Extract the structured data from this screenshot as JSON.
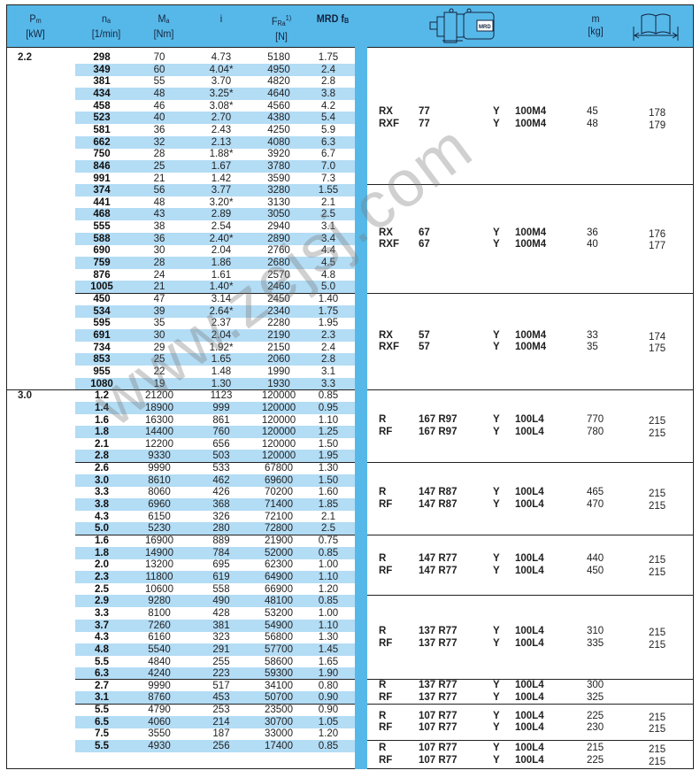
{
  "header": {
    "power": {
      "symbol": "P",
      "sub": "m",
      "unit": "[kW]"
    },
    "speed": {
      "symbol": "n",
      "sub": "a",
      "unit": "[1/min]"
    },
    "torque": {
      "symbol": "M",
      "sub": "a",
      "unit": "[Nm]"
    },
    "ratio": {
      "symbol": "i"
    },
    "force": {
      "symbol": "F",
      "sub": "Ra",
      "sup": "1)",
      "unit": "[N]"
    },
    "service_factor": {
      "label": "MRD f",
      "sub": "B"
    },
    "gearmotor_icon": "gearmotor-drawing-icon",
    "mass": {
      "symbol": "m",
      "unit": "[kg]"
    },
    "page_icon": "book-page-reference-icon"
  },
  "colors": {
    "header_bg": "#56b8e8",
    "stripe": "#b3dcf5",
    "accent_bar": "#56b8e8"
  },
  "watermark": "www.zejsj.com",
  "groups": [
    {
      "power": "2.2",
      "rows": [
        [
          "298",
          "70",
          "4.73",
          "5180",
          "1.75"
        ],
        [
          "349",
          "60",
          "4.04*",
          "4950",
          "2.4"
        ],
        [
          "381",
          "55",
          "3.70",
          "4820",
          "2.8"
        ],
        [
          "434",
          "48",
          "3.25*",
          "4640",
          "3.8"
        ],
        [
          "458",
          "46",
          "3.08*",
          "4560",
          "4.2"
        ],
        [
          "523",
          "40",
          "2.70",
          "4380",
          "5.4"
        ],
        [
          "581",
          "36",
          "2.43",
          "4250",
          "5.9"
        ],
        [
          "662",
          "32",
          "2.13",
          "4080",
          "6.3"
        ],
        [
          "750",
          "28",
          "1.88*",
          "3920",
          "6.7"
        ],
        [
          "846",
          "25",
          "1.67",
          "3780",
          "7.0"
        ],
        [
          "991",
          "21",
          "1.42",
          "3590",
          "7.3"
        ]
      ],
      "types": [
        {
          "type": "RX",
          "size": "77",
          "y": "Y",
          "motor": "100M4",
          "m": "45",
          "page": "178"
        },
        {
          "type": "RXF",
          "size": "77",
          "y": "Y",
          "motor": "100M4",
          "m": "48",
          "page": "179"
        }
      ]
    },
    {
      "rows": [
        [
          "374",
          "56",
          "3.77",
          "3280",
          "1.55"
        ],
        [
          "441",
          "48",
          "3.20*",
          "3130",
          "2.1"
        ],
        [
          "468",
          "43",
          "2.89",
          "3050",
          "2.5"
        ],
        [
          "555",
          "38",
          "2.54",
          "2940",
          "3.1"
        ],
        [
          "588",
          "36",
          "2.40*",
          "2890",
          "3.4"
        ],
        [
          "690",
          "30",
          "2.04",
          "2760",
          "4.4"
        ],
        [
          "759",
          "28",
          "1.86",
          "2680",
          "4.5"
        ],
        [
          "876",
          "24",
          "1.61",
          "2570",
          "4.8"
        ],
        [
          "1005",
          "21",
          "1.40*",
          "2460",
          "5.0"
        ]
      ],
      "types": [
        {
          "type": "RX",
          "size": "67",
          "y": "Y",
          "motor": "100M4",
          "m": "36",
          "page": "176"
        },
        {
          "type": "RXF",
          "size": "67",
          "y": "Y",
          "motor": "100M4",
          "m": "40",
          "page": "177"
        }
      ]
    },
    {
      "rows": [
        [
          "450",
          "47",
          "3.14",
          "2450",
          "1.40"
        ],
        [
          "534",
          "39",
          "2.64*",
          "2340",
          "1.75"
        ],
        [
          "595",
          "35",
          "2.37",
          "2280",
          "1.95"
        ],
        [
          "691",
          "30",
          "2.04",
          "2190",
          "2.3"
        ],
        [
          "734",
          "29",
          "1.92*",
          "2150",
          "2.4"
        ],
        [
          "853",
          "25",
          "1.65",
          "2060",
          "2.8"
        ],
        [
          "955",
          "22",
          "1.48",
          "1990",
          "3.1"
        ],
        [
          "1080",
          "19",
          "1.30",
          "1930",
          "3.3"
        ]
      ],
      "types": [
        {
          "type": "RX",
          "size": "57",
          "y": "Y",
          "motor": "100M4",
          "m": "33",
          "page": "174"
        },
        {
          "type": "RXF",
          "size": "57",
          "y": "Y",
          "motor": "100M4",
          "m": "35",
          "page": "175"
        }
      ]
    },
    {
      "power": "3.0",
      "rows": [
        [
          "1.2",
          "21200",
          "1123",
          "120000",
          "0.85"
        ],
        [
          "1.4",
          "18900",
          "999",
          "120000",
          "0.95"
        ],
        [
          "1.6",
          "16300",
          "861",
          "120000",
          "1.10"
        ],
        [
          "1.8",
          "14400",
          "760",
          "120000",
          "1.25"
        ],
        [
          "2.1",
          "12200",
          "656",
          "120000",
          "1.50"
        ],
        [
          "2.8",
          "9330",
          "503",
          "120000",
          "1.95"
        ]
      ],
      "types": [
        {
          "type": "R",
          "size": "167 R97",
          "y": "Y",
          "motor": "100L4",
          "m": "770",
          "page": "215"
        },
        {
          "type": "RF",
          "size": "167 R97",
          "y": "Y",
          "motor": "100L4",
          "m": "780",
          "page": "215"
        }
      ]
    },
    {
      "rows": [
        [
          "2.6",
          "9990",
          "533",
          "67800",
          "1.30"
        ],
        [
          "3.0",
          "8610",
          "462",
          "69600",
          "1.50"
        ],
        [
          "3.3",
          "8060",
          "426",
          "70200",
          "1.60"
        ],
        [
          "3.8",
          "6960",
          "368",
          "71400",
          "1.85"
        ],
        [
          "4.3",
          "6150",
          "326",
          "72100",
          "2.1"
        ],
        [
          "5.0",
          "5230",
          "280",
          "72800",
          "2.5"
        ]
      ],
      "types": [
        {
          "type": "R",
          "size": "147 R87",
          "y": "Y",
          "motor": "100L4",
          "m": "465",
          "page": "215"
        },
        {
          "type": "RF",
          "size": "147 R87",
          "y": "Y",
          "motor": "100L4",
          "m": "470",
          "page": "215"
        }
      ]
    },
    {
      "rows": [
        [
          "1.6",
          "16900",
          "889",
          "21900",
          "0.75"
        ],
        [
          "1.8",
          "14900",
          "784",
          "52000",
          "0.85"
        ],
        [
          "2.0",
          "13200",
          "695",
          "62300",
          "1.00"
        ],
        [
          "2.3",
          "11800",
          "619",
          "64900",
          "1.10"
        ],
        [
          "2.5",
          "10600",
          "558",
          "66900",
          "1.20"
        ]
      ],
      "types": [
        {
          "type": "R",
          "size": "147 R77",
          "y": "Y",
          "motor": "100L4",
          "m": "440",
          "page": "215"
        },
        {
          "type": "RF",
          "size": "147 R77",
          "y": "Y",
          "motor": "100L4",
          "m": "450",
          "page": "215"
        }
      ]
    },
    {
      "rows": [
        [
          "2.9",
          "9280",
          "490",
          "48100",
          "0.85"
        ],
        [
          "3.3",
          "8100",
          "428",
          "53200",
          "1.00"
        ],
        [
          "3.7",
          "7260",
          "381",
          "54900",
          "1.10"
        ],
        [
          "4.3",
          "6160",
          "323",
          "56800",
          "1.30"
        ],
        [
          "4.8",
          "5540",
          "291",
          "57700",
          "1.45"
        ],
        [
          "5.5",
          "4840",
          "255",
          "58600",
          "1.65"
        ],
        [
          "6.3",
          "4240",
          "223",
          "59300",
          "1.90"
        ]
      ],
      "types": [
        {
          "type": "R",
          "size": "137 R77",
          "y": "Y",
          "motor": "100L4",
          "m": "310",
          "page": "215"
        },
        {
          "type": "RF",
          "size": "137 R77",
          "y": "Y",
          "motor": "100L4",
          "m": "335",
          "page": "215"
        }
      ]
    },
    {
      "rows": [
        [
          "2.7",
          "9990",
          "517",
          "34100",
          "0.80"
        ],
        [
          "3.1",
          "8760",
          "453",
          "50700",
          "0.90"
        ]
      ],
      "types": [
        {
          "type": "R",
          "size": "137 R77",
          "y": "Y",
          "motor": "100L4",
          "m": "300",
          "page": ""
        },
        {
          "type": "RF",
          "size": "137 R77",
          "y": "Y",
          "motor": "100L4",
          "m": "325",
          "page": ""
        }
      ]
    },
    {
      "rows": [
        [
          "5.5",
          "4790",
          "253",
          "23500",
          "0.90"
        ],
        [
          "6.5",
          "4060",
          "214",
          "30700",
          "1.05"
        ],
        [
          "7.5",
          "3550",
          "187",
          "33000",
          "1.20"
        ]
      ],
      "types": [
        {
          "type": "R",
          "size": "107 R77",
          "y": "Y",
          "motor": "100L4",
          "m": "225",
          "page": "215"
        },
        {
          "type": "RF",
          "size": "107 R77",
          "y": "Y",
          "motor": "100L4",
          "m": "230",
          "page": "215"
        }
      ]
    },
    {
      "rows": [
        [
          "5.5",
          "4930",
          "256",
          "17400",
          "0.85"
        ]
      ],
      "types": [
        {
          "type": "R",
          "size": "107 R77",
          "y": "Y",
          "motor": "100L4",
          "m": "215",
          "page": "215"
        },
        {
          "type": "RF",
          "size": "107 R77",
          "y": "Y",
          "motor": "100L4",
          "m": "225",
          "page": "215"
        }
      ]
    }
  ]
}
